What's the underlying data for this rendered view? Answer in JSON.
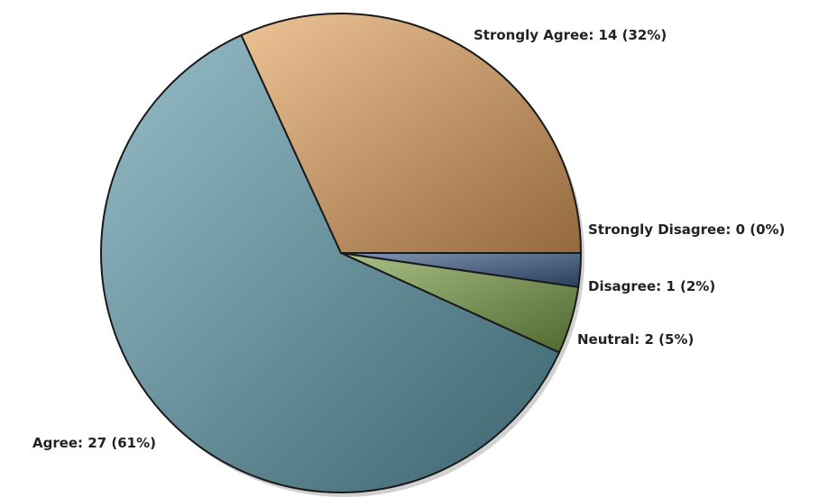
{
  "chart_data": {
    "type": "pie",
    "title": "",
    "slices": [
      {
        "label": "Strongly Disagree: 0 (0%)",
        "category": "Strongly Disagree",
        "count": 0,
        "percent": 0,
        "value": 0,
        "color": "#6f8fb8"
      },
      {
        "label": "Disagree: 1 (2%)",
        "category": "Disagree",
        "count": 1,
        "percent": 2,
        "value": 1,
        "color": "#3f5f8c"
      },
      {
        "label": "Neutral: 2 (5%)",
        "category": "Neutral",
        "count": 2,
        "percent": 5,
        "value": 2,
        "color": "#7aa04a"
      },
      {
        "label": "Agree: 27 (61%)",
        "category": "Agree",
        "count": 27,
        "percent": 61,
        "value": 27,
        "color": "#5d9aaa"
      },
      {
        "label": "Strongly Agree: 14 (32%)",
        "category": "Strongly Agree",
        "count": 14,
        "percent": 32,
        "value": 14,
        "color": "#e3a25e"
      }
    ],
    "start_angle_deg": 0,
    "direction": "clockwise",
    "legend": "none"
  }
}
